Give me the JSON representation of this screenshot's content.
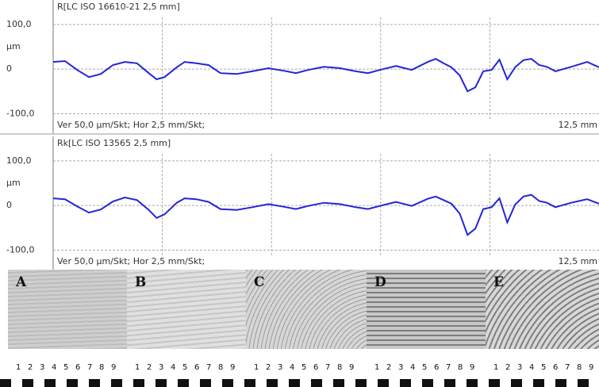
{
  "chart_data": [
    {
      "type": "line",
      "title": "R[LC ISO 16610-21 2,5 mm]",
      "y_label": "µm",
      "footer_left": "Ver 50,0 µm/Skt; Hor 2,5 mm/Skt;",
      "footer_right": "12,5 mm",
      "color": "#2424d8",
      "ylim": [
        -135,
        130
      ],
      "xlim": [
        0,
        12.5
      ],
      "yticks": [
        {
          "value": 100,
          "label": "100,0"
        },
        0,
        {
          "value": -100,
          "label": "-100,0"
        }
      ],
      "grid": true,
      "x": [
        0,
        0.27,
        0.55,
        0.82,
        1.09,
        1.37,
        1.64,
        1.92,
        2.19,
        2.37,
        2.55,
        2.83,
        3.01,
        3.28,
        3.56,
        3.83,
        4.2,
        4.56,
        4.93,
        5.29,
        5.56,
        5.84,
        6.2,
        6.57,
        6.93,
        7.21,
        7.48,
        7.85,
        8.21,
        8.58,
        8.76,
        8.94,
        9.12,
        9.31,
        9.49,
        9.67,
        9.85,
        10.04,
        10.22,
        10.4,
        10.58,
        10.77,
        10.95,
        11.13,
        11.31,
        11.5,
        11.86,
        12.23,
        12.5
      ],
      "values": [
        16,
        18,
        -2,
        -18,
        -11,
        9,
        16,
        13,
        -9,
        -23,
        -18,
        4,
        16,
        13,
        9,
        -9,
        -11,
        -5,
        2,
        -4,
        -9,
        -2,
        5,
        2,
        -5,
        -9,
        -2,
        7,
        -2,
        16,
        23,
        13,
        4,
        -14,
        -50,
        -41,
        -5,
        -2,
        21,
        -23,
        4,
        20,
        23,
        9,
        5,
        -5,
        5,
        16,
        4
      ]
    },
    {
      "type": "line",
      "title": "Rk[LC ISO 13565 2,5 mm]",
      "y_label": "µm",
      "footer_left": "Ver 50,0 µm/Skt; Hor 2,5 mm/Skt;",
      "footer_right": "12,5 mm",
      "color": "#2424d8",
      "ylim": [
        -135,
        130
      ],
      "xlim": [
        0,
        12.5
      ],
      "yticks": [
        {
          "value": 100,
          "label": "100,0"
        },
        0,
        {
          "value": -100,
          "label": "-100,0"
        }
      ],
      "grid": true,
      "x": [
        0,
        0.27,
        0.55,
        0.82,
        1.09,
        1.37,
        1.64,
        1.92,
        2.19,
        2.37,
        2.55,
        2.83,
        3.01,
        3.28,
        3.56,
        3.83,
        4.2,
        4.56,
        4.93,
        5.29,
        5.56,
        5.84,
        6.2,
        6.57,
        6.93,
        7.21,
        7.48,
        7.85,
        8.21,
        8.58,
        8.76,
        8.94,
        9.12,
        9.31,
        9.49,
        9.67,
        9.85,
        10.04,
        10.22,
        10.4,
        10.58,
        10.77,
        10.95,
        11.13,
        11.31,
        11.5,
        11.86,
        12.23,
        12.5
      ],
      "values": [
        16,
        14,
        -2,
        -16,
        -9,
        9,
        18,
        12,
        -10,
        -28,
        -20,
        6,
        16,
        14,
        8,
        -8,
        -10,
        -4,
        3,
        -3,
        -8,
        -1,
        6,
        3,
        -4,
        -8,
        -1,
        8,
        -1,
        15,
        20,
        12,
        4,
        -18,
        -66,
        -52,
        -8,
        -4,
        16,
        -38,
        2,
        20,
        24,
        10,
        6,
        -4,
        6,
        14,
        4
      ]
    }
  ],
  "panels": {
    "labels": [
      "A",
      "B",
      "C",
      "D",
      "E"
    ],
    "ruler": [
      "1",
      "2",
      "3",
      "4",
      "5",
      "6",
      "7",
      "8",
      "9"
    ]
  }
}
